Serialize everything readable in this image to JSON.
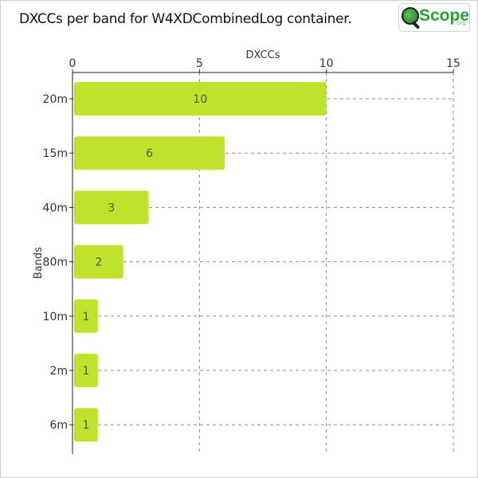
{
  "title": "DXCCs per band for W4XDCombinedLog container.",
  "logo": {
    "text": "Scope",
    "suffix": ".org"
  },
  "colors": {
    "bar": "#bfe22a",
    "grid": "#8a8a8a",
    "axis": "#222222",
    "text": "#333333"
  },
  "chart_data": {
    "type": "bar",
    "orientation": "horizontal",
    "categories": [
      "20m",
      "15m",
      "40m",
      "80m",
      "10m",
      "2m",
      "6m"
    ],
    "values": [
      10,
      6,
      3,
      2,
      1,
      1,
      1
    ],
    "xlabel": "DXCCs",
    "ylabel": "Bands",
    "xlim": [
      0,
      15
    ],
    "xticks": [
      0,
      5,
      10,
      15
    ],
    "x_axis_position": "top",
    "grid": true,
    "data_labels": true
  }
}
